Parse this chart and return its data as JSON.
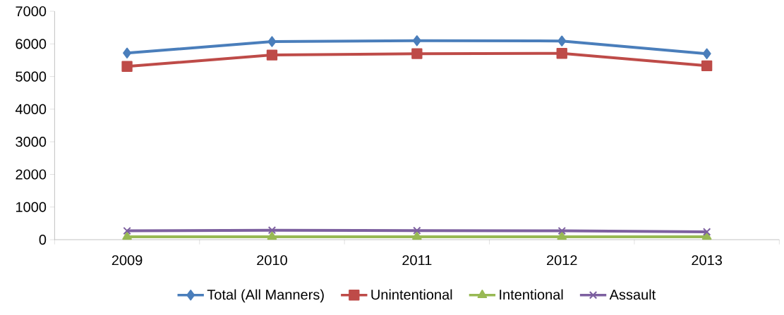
{
  "chart_data": {
    "type": "line",
    "categories": [
      "2009",
      "2010",
      "2011",
      "2012",
      "2013"
    ],
    "series": [
      {
        "name": "Total (All Manners)",
        "color": "#4a7ebb",
        "marker": "diamond",
        "values": [
          5720,
          6070,
          6100,
          6090,
          5700
        ]
      },
      {
        "name": "Unintentional",
        "color": "#be4b48",
        "marker": "square",
        "values": [
          5310,
          5660,
          5700,
          5710,
          5330
        ]
      },
      {
        "name": "Intentional",
        "color": "#98b954",
        "marker": "triangle",
        "values": [
          90,
          90,
          90,
          90,
          90
        ]
      },
      {
        "name": "Assault",
        "color": "#7d60a0",
        "marker": "cross",
        "values": [
          270,
          290,
          280,
          270,
          240
        ]
      }
    ],
    "ylim": [
      0,
      7000
    ],
    "yticks": [
      0,
      1000,
      2000,
      3000,
      4000,
      5000,
      6000,
      7000
    ],
    "grid": false,
    "legend": "bottom",
    "line_style": "solid"
  }
}
